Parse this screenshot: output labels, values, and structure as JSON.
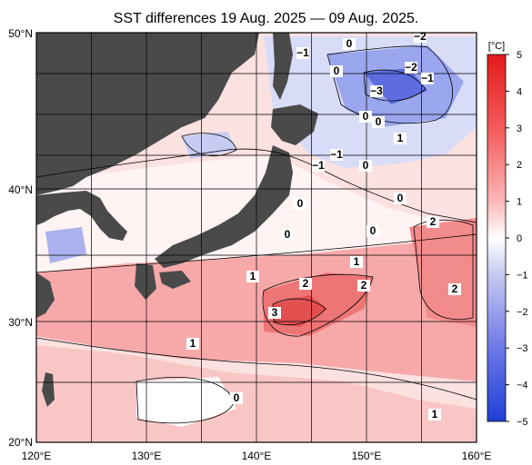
{
  "title": "SST differences 19 Aug. 2025 — 09 Aug. 2025.",
  "axes": {
    "lon_ticks": [
      "120°E",
      "130°E",
      "140°E",
      "150°E",
      "160°E"
    ],
    "lat_ticks": [
      "50°N",
      "40°N",
      "30°N",
      "20°N"
    ]
  },
  "colorbar": {
    "unit": "[°C]",
    "ticks": [
      "5",
      "4",
      "3",
      "2",
      "1",
      "0",
      "−1",
      "−2",
      "−3",
      "−4",
      "−5"
    ],
    "min": -5,
    "max": 5,
    "color_high": "#e31a1c",
    "color_zero": "#ffffff",
    "color_low": "#1f3fd6"
  },
  "contour_labels": [
    "−2",
    "0",
    "−1",
    "0",
    "−2",
    "−1",
    "−3",
    "0",
    "0",
    "1",
    "−1",
    "−1",
    "0",
    "0",
    "0",
    "2",
    "0",
    "0",
    "1",
    "1",
    "2",
    "2",
    "2",
    "3",
    "1",
    "0",
    "1"
  ],
  "colors": {
    "land": "#4a4a4a",
    "frame": "#000000",
    "grid": "#000000"
  }
}
